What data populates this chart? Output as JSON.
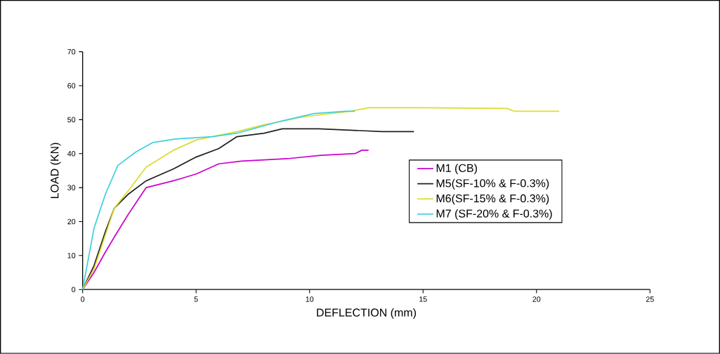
{
  "chart_data": {
    "type": "line",
    "xlabel": "DEFLECTION (mm)",
    "ylabel": "LOAD (KN)",
    "xlim": [
      0,
      25
    ],
    "ylim": [
      0,
      70
    ],
    "xticks": [
      0,
      5,
      10,
      15,
      20,
      25
    ],
    "yticks": [
      0,
      10,
      20,
      30,
      40,
      50,
      60,
      70
    ],
    "grid": false,
    "legend": "right",
    "marker": "none",
    "line_style": "solid",
    "series": [
      {
        "name": "M1 (CB)",
        "color": "#cc00cc",
        "x": [
          0,
          0.5,
          1,
          1.4,
          2,
          2.8,
          4,
          5,
          6,
          7,
          9,
          10.5,
          12,
          12.3,
          12.6
        ],
        "values": [
          0,
          5,
          11,
          15.5,
          22,
          30,
          32,
          34,
          37,
          37.8,
          38.5,
          39.5,
          40,
          41,
          41
        ]
      },
      {
        "name": "M5(SF-10% & F-0.3%)",
        "color": "#202020",
        "x": [
          0,
          0.5,
          1,
          1.4,
          2,
          2.8,
          4,
          5,
          6,
          6.8,
          8,
          8.8,
          10.4,
          13.2,
          14.6
        ],
        "values": [
          0,
          7,
          17,
          24,
          28,
          32,
          35.5,
          39,
          41.5,
          45,
          46,
          47.3,
          47.3,
          46.5,
          46.5
        ]
      },
      {
        "name": "M6(SF-15% & F-0.3%)",
        "color": "#dcdc30",
        "x": [
          0,
          0.5,
          1,
          1.4,
          2,
          2.8,
          4,
          5,
          6.8,
          8,
          9.7,
          11.8,
          12.6,
          14.9,
          18.7,
          19,
          21
        ],
        "values": [
          0,
          6,
          16,
          24,
          29,
          36,
          41,
          44,
          46.5,
          48.5,
          50.8,
          52.5,
          53.5,
          53.5,
          53.3,
          52.5,
          52.5
        ]
      },
      {
        "name": "M7 (SF-20% & F-0.3%)",
        "color": "#40d0e0",
        "x": [
          0,
          0.5,
          1,
          1.55,
          2.35,
          3.1,
          4.1,
          5.7,
          6.8,
          8.7,
          10.2,
          11.6,
          12
        ],
        "values": [
          0,
          18,
          28,
          36.5,
          40.5,
          43.3,
          44.3,
          45,
          46,
          49.5,
          51.8,
          52.5,
          52.5
        ]
      }
    ]
  }
}
